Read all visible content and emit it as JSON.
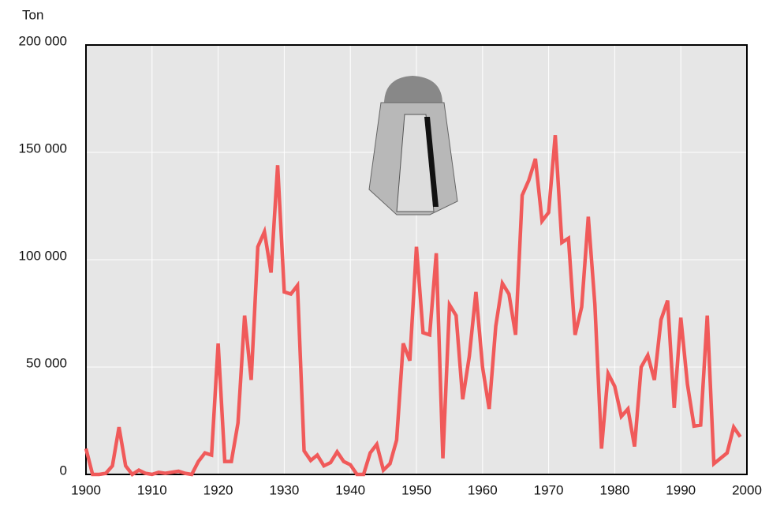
{
  "chart_data": {
    "type": "line",
    "y_label": "Ton",
    "x": [
      1900,
      1901,
      1902,
      1903,
      1904,
      1905,
      1906,
      1907,
      1908,
      1909,
      1910,
      1911,
      1912,
      1913,
      1914,
      1915,
      1916,
      1917,
      1918,
      1919,
      1920,
      1921,
      1922,
      1923,
      1924,
      1925,
      1926,
      1927,
      1928,
      1929,
      1930,
      1931,
      1932,
      1933,
      1934,
      1935,
      1936,
      1937,
      1938,
      1939,
      1940,
      1941,
      1942,
      1943,
      1944,
      1945,
      1946,
      1947,
      1948,
      1949,
      1950,
      1951,
      1952,
      1953,
      1954,
      1955,
      1956,
      1957,
      1958,
      1959,
      1960,
      1961,
      1962,
      1963,
      1964,
      1965,
      1966,
      1967,
      1968,
      1969,
      1970,
      1971,
      1972,
      1973,
      1974,
      1975,
      1976,
      1977,
      1978,
      1979,
      1980,
      1981,
      1982,
      1983,
      1984,
      1985,
      1986,
      1987,
      1988,
      1989,
      1990,
      1991,
      1992,
      1993,
      1994,
      1995,
      1996,
      1997,
      1998,
      1999
    ],
    "values": [
      12000,
      0,
      0,
      500,
      4000,
      22000,
      4000,
      0,
      2000,
      500,
      0,
      1000,
      500,
      1000,
      1500,
      500,
      0,
      6000,
      10000,
      9000,
      61000,
      6000,
      6000,
      24000,
      74000,
      44000,
      106000,
      113000,
      94000,
      144000,
      85000,
      84000,
      88000,
      11000,
      6500,
      9000,
      4000,
      5500,
      10500,
      6000,
      4500,
      0,
      0,
      10000,
      14000,
      2000,
      5000,
      16000,
      61000,
      53000,
      106000,
      66000,
      65000,
      103000,
      7500,
      79000,
      74000,
      35000,
      55000,
      85000,
      50000,
      30500,
      69000,
      89000,
      84000,
      65000,
      130000,
      137000,
      147000,
      118000,
      122000,
      158000,
      108000,
      110000,
      65000,
      78000,
      120000,
      79000,
      12000,
      47000,
      41000,
      27000,
      30500,
      13000,
      50000,
      55500,
      44000,
      72000,
      81000,
      31000,
      73000,
      42000,
      22500,
      23000,
      74000,
      5000,
      7500,
      10000,
      22000,
      17500
    ],
    "color": "#f05a5a",
    "xlim": [
      1900,
      2000
    ],
    "xticks": [
      1900,
      1910,
      1920,
      1930,
      1940,
      1950,
      1960,
      1970,
      1980,
      1990,
      2000
    ],
    "ylim": [
      0,
      200000
    ],
    "yticks": [
      0,
      {
        "value": 50000,
        "label": "50 000"
      },
      {
        "value": 100000,
        "label": "100 000"
      },
      {
        "value": 150000,
        "label": "150 000"
      },
      {
        "value": 200000,
        "label": "200 000"
      }
    ],
    "grid": true
  }
}
